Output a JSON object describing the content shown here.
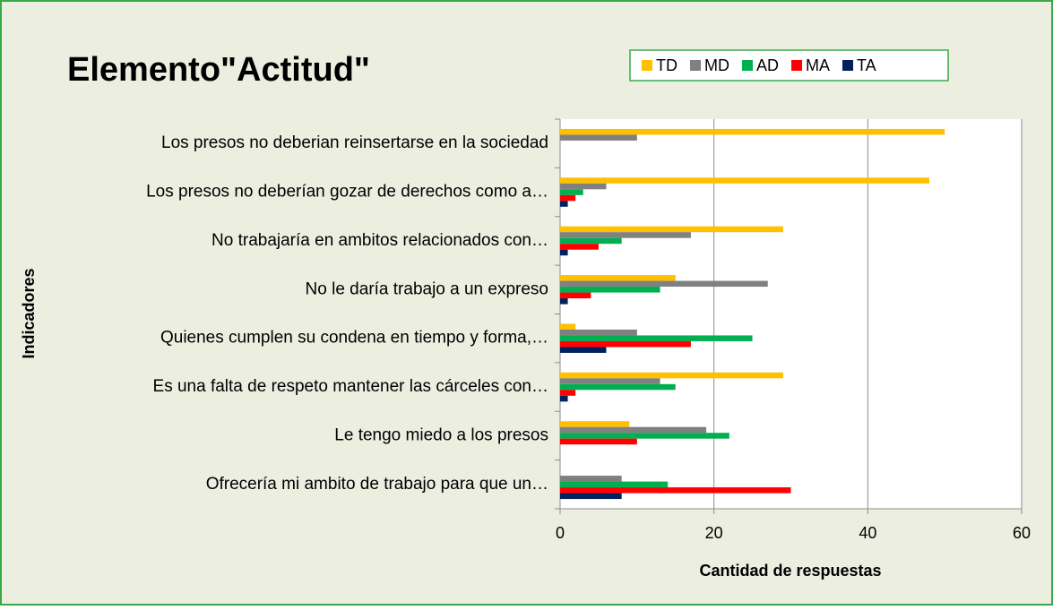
{
  "chart_data": {
    "type": "bar",
    "orientation": "horizontal",
    "title": "Elemento\"Actitud\"",
    "x_label": "Cantidad de respuestas",
    "y_label": "Indicadores",
    "categories": [
      "Los presos no deberian reinsertarse en la sociedad",
      "Los presos no deberían gozar de derechos como a…",
      "No trabajaría en ambitos relacionados con…",
      "No le daría trabajo a un expreso",
      "Quienes cumplen su condena en tiempo y forma,…",
      "Es una falta de respeto mantener las cárceles con…",
      "Le tengo miedo a los presos",
      "Ofrecería mi ambito de trabajo para que un…"
    ],
    "series": [
      {
        "name": "TD",
        "color": "#ffc000",
        "values": [
          50,
          48,
          29,
          15,
          2,
          29,
          9,
          0
        ]
      },
      {
        "name": "MD",
        "color": "#808080",
        "values": [
          10,
          6,
          17,
          27,
          10,
          13,
          19,
          8
        ]
      },
      {
        "name": "AD",
        "color": "#00b050",
        "values": [
          0,
          3,
          8,
          13,
          25,
          15,
          22,
          14
        ]
      },
      {
        "name": "MA",
        "color": "#ff0000",
        "values": [
          0,
          2,
          5,
          4,
          17,
          2,
          10,
          30
        ]
      },
      {
        "name": "TA",
        "color": "#002060",
        "values": [
          0,
          1,
          1,
          1,
          6,
          1,
          0,
          8
        ]
      }
    ],
    "xlim": [
      0,
      60
    ],
    "xticks": [
      0,
      20,
      40,
      60
    ],
    "grid": true,
    "legend": "top"
  }
}
